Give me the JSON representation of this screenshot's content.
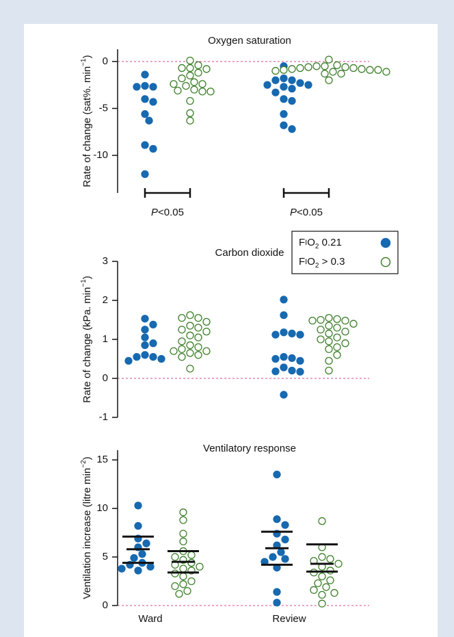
{
  "chart_data": [
    {
      "type": "strip",
      "title": "Oxygen saturation",
      "y_label": "Rate of change (sat%. min−1)",
      "categories": [
        null,
        null
      ],
      "ylim": [
        -14,
        1.3
      ],
      "yticks": [
        0,
        -5,
        -10
      ],
      "hline": 0,
      "annotations": [
        "P<0.05",
        "P<0.05"
      ],
      "series": [
        {
          "color": "#1769b0",
          "filled": true,
          "values": [
            [
              -1.4,
              -2.6,
              -2.7,
              -2.7,
              -4.0,
              -4.3,
              -5.6,
              -6.3,
              -8.9,
              -9.3,
              -12.0
            ],
            [
              -0.5,
              -1.8,
              -2.0,
              -2.0,
              -2.3,
              -2.5,
              -2.5,
              -2.7,
              -2.9,
              -3.3,
              -4.0,
              -4.2,
              -5.6,
              -6.8,
              -7.2
            ]
          ]
        },
        {
          "color": "#3d7f2a",
          "filled": false,
          "values": [
            [
              0.1,
              -0.4,
              -0.7,
              -0.8,
              -0.7,
              -1.2,
              -1.5,
              -1.8,
              -2.2,
              -2.4,
              -2.4,
              -2.6,
              -3.0,
              -3.1,
              -3.2,
              -3.2,
              -4.2,
              -5.5,
              -6.3
            ],
            [
              0.2,
              -0.4,
              -0.5,
              -0.5,
              -0.6,
              -0.6,
              -0.7,
              -0.7,
              -0.8,
              -0.8,
              -0.9,
              -0.9,
              -0.9,
              -1.0,
              -1.1,
              -1.1,
              -1.3,
              -1.3,
              -2.0
            ]
          ]
        }
      ]
    },
    {
      "type": "strip",
      "title": "Carbon dioxide",
      "y_label": "Rate of change (kPa. min−1)",
      "categories": [
        null,
        null
      ],
      "ylim": [
        -1,
        3
      ],
      "yticks": [
        3,
        2,
        1,
        0,
        -1
      ],
      "hline": 0,
      "legend": "top-right",
      "series": [
        {
          "name": "FIO2 0.21",
          "color": "#1769b0",
          "filled": true,
          "values": [
            [
              1.53,
              1.38,
              1.25,
              1.05,
              0.9,
              0.85,
              0.6,
              0.55,
              0.55,
              0.5,
              0.45
            ],
            [
              2.02,
              1.62,
              1.18,
              1.15,
              1.12,
              1.12,
              0.55,
              0.52,
              0.5,
              0.45,
              0.28,
              0.2,
              0.18,
              0.17,
              -0.42
            ]
          ]
        },
        {
          "name": "FIO2 > 0.3",
          "color": "#3d7f2a",
          "filled": false,
          "values": [
            [
              1.62,
              1.55,
              1.55,
              1.45,
              1.35,
              1.3,
              1.25,
              1.2,
              1.1,
              1.05,
              0.95,
              0.85,
              0.8,
              0.75,
              0.7,
              0.7,
              0.65,
              0.6,
              0.55,
              0.25
            ],
            [
              1.55,
              1.52,
              1.5,
              1.48,
              1.48,
              1.4,
              1.35,
              1.3,
              1.25,
              1.2,
              1.15,
              1.05,
              1.0,
              0.95,
              0.9,
              0.8,
              0.75,
              0.6,
              0.45,
              0.2
            ]
          ]
        }
      ]
    },
    {
      "type": "strip",
      "title": "Ventilatory response",
      "y_label": "Ventilation increase (litre min−2)",
      "categories": [
        "Ward",
        "Review"
      ],
      "ylim": [
        0,
        16
      ],
      "yticks": [
        15,
        10,
        5,
        0
      ],
      "hline": 0,
      "series": [
        {
          "color": "#1769b0",
          "filled": true,
          "values": [
            [
              10.3,
              8.2,
              6.9,
              6.4,
              6.0,
              5.3,
              4.9,
              4.4,
              4.2,
              4.0,
              3.8,
              3.6
            ],
            [
              13.5,
              8.9,
              8.3,
              7.4,
              6.8,
              6.2,
              5.5,
              5.0,
              4.8,
              4.5,
              3.9,
              1.4,
              0.3
            ]
          ],
          "bars": [
            [
              4.4,
              5.8,
              7.1
            ],
            [
              4.2,
              5.9,
              7.6
            ]
          ]
        },
        {
          "color": "#3d7f2a",
          "filled": false,
          "values": [
            [
              9.6,
              8.8,
              7.4,
              6.6,
              5.6,
              5.2,
              5.0,
              4.7,
              4.4,
              4.2,
              4.0,
              3.8,
              3.6,
              3.3,
              3.0,
              2.5,
              2.2,
              2.0,
              1.5,
              1.2
            ],
            [
              8.7,
              6.0,
              5.0,
              4.8,
              4.6,
              4.3,
              4.0,
              3.6,
              3.4,
              3.0,
              2.6,
              2.3,
              1.9,
              1.6,
              1.3,
              1.1,
              0.2
            ]
          ],
          "bars": [
            [
              3.4,
              4.5,
              5.6
            ],
            [
              3.5,
              4.3,
              6.3
            ]
          ]
        }
      ]
    }
  ]
}
